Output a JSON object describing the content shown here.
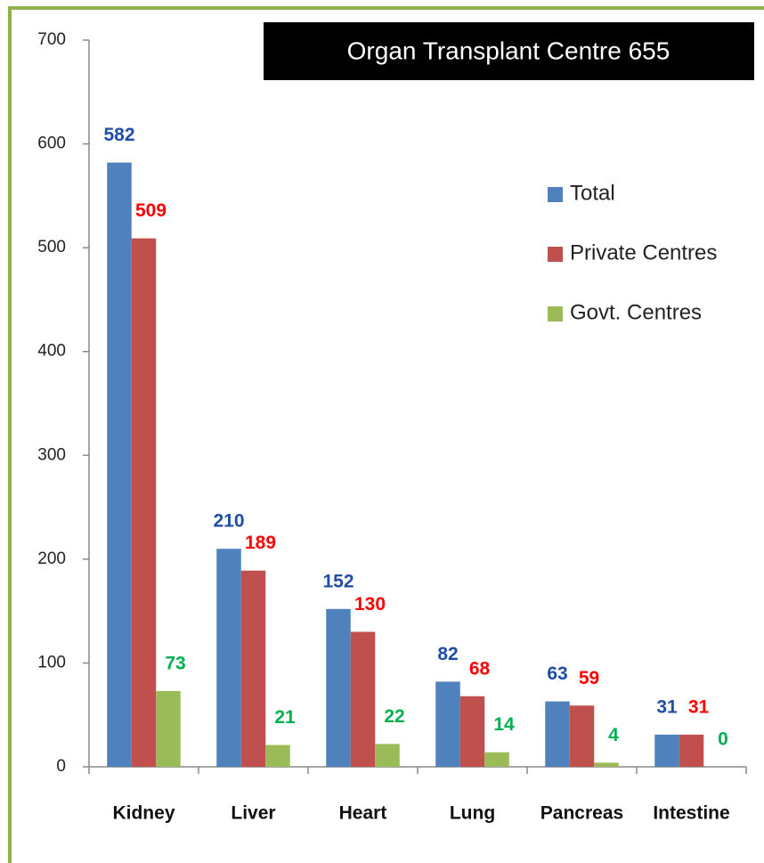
{
  "chart_data": {
    "type": "bar",
    "title": "Organ Transplant Centre 655",
    "categories": [
      "Kidney",
      "Liver",
      "Heart",
      "Lung",
      "Pancreas",
      "Intestine"
    ],
    "series": [
      {
        "name": "Total",
        "color": "#4f81bd",
        "label_color": "#1f4ea8",
        "values": [
          582,
          210,
          152,
          82,
          63,
          31
        ]
      },
      {
        "name": "Private Centres",
        "color": "#c0504d",
        "label_color": "#ff0000",
        "values": [
          509,
          189,
          130,
          68,
          59,
          31
        ]
      },
      {
        "name": "Govt. Centres",
        "color": "#9bbb59",
        "label_color": "#00b050",
        "values": [
          73,
          21,
          22,
          14,
          4,
          0
        ]
      }
    ],
    "ylim": [
      0,
      700
    ],
    "yticks": [
      0,
      100,
      200,
      300,
      400,
      500,
      600,
      700
    ],
    "legend": "upper right",
    "grid": false
  }
}
